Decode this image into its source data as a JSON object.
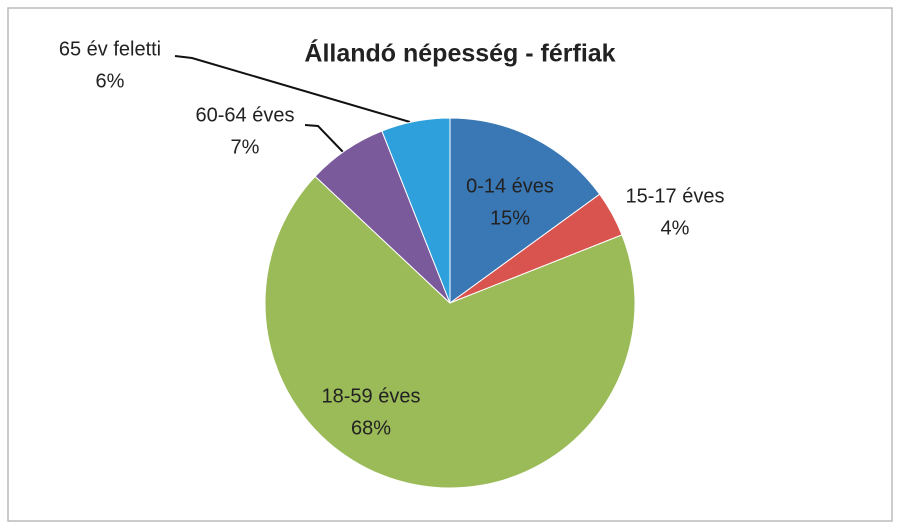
{
  "chart_data": {
    "type": "pie",
    "title": "Állandó népesség - férfiak",
    "categories": [
      "0-14 éves",
      "15-17 éves",
      "18-59 éves",
      "60-64 éves",
      "65 év feletti"
    ],
    "values": [
      15,
      4,
      68,
      7,
      6
    ],
    "value_labels": [
      "15%",
      "4%",
      "68%",
      "7%",
      "6%"
    ],
    "colors": [
      "#3a78b5",
      "#d9534f",
      "#9bbb59",
      "#7b5a9c",
      "#2ea0dc"
    ]
  }
}
